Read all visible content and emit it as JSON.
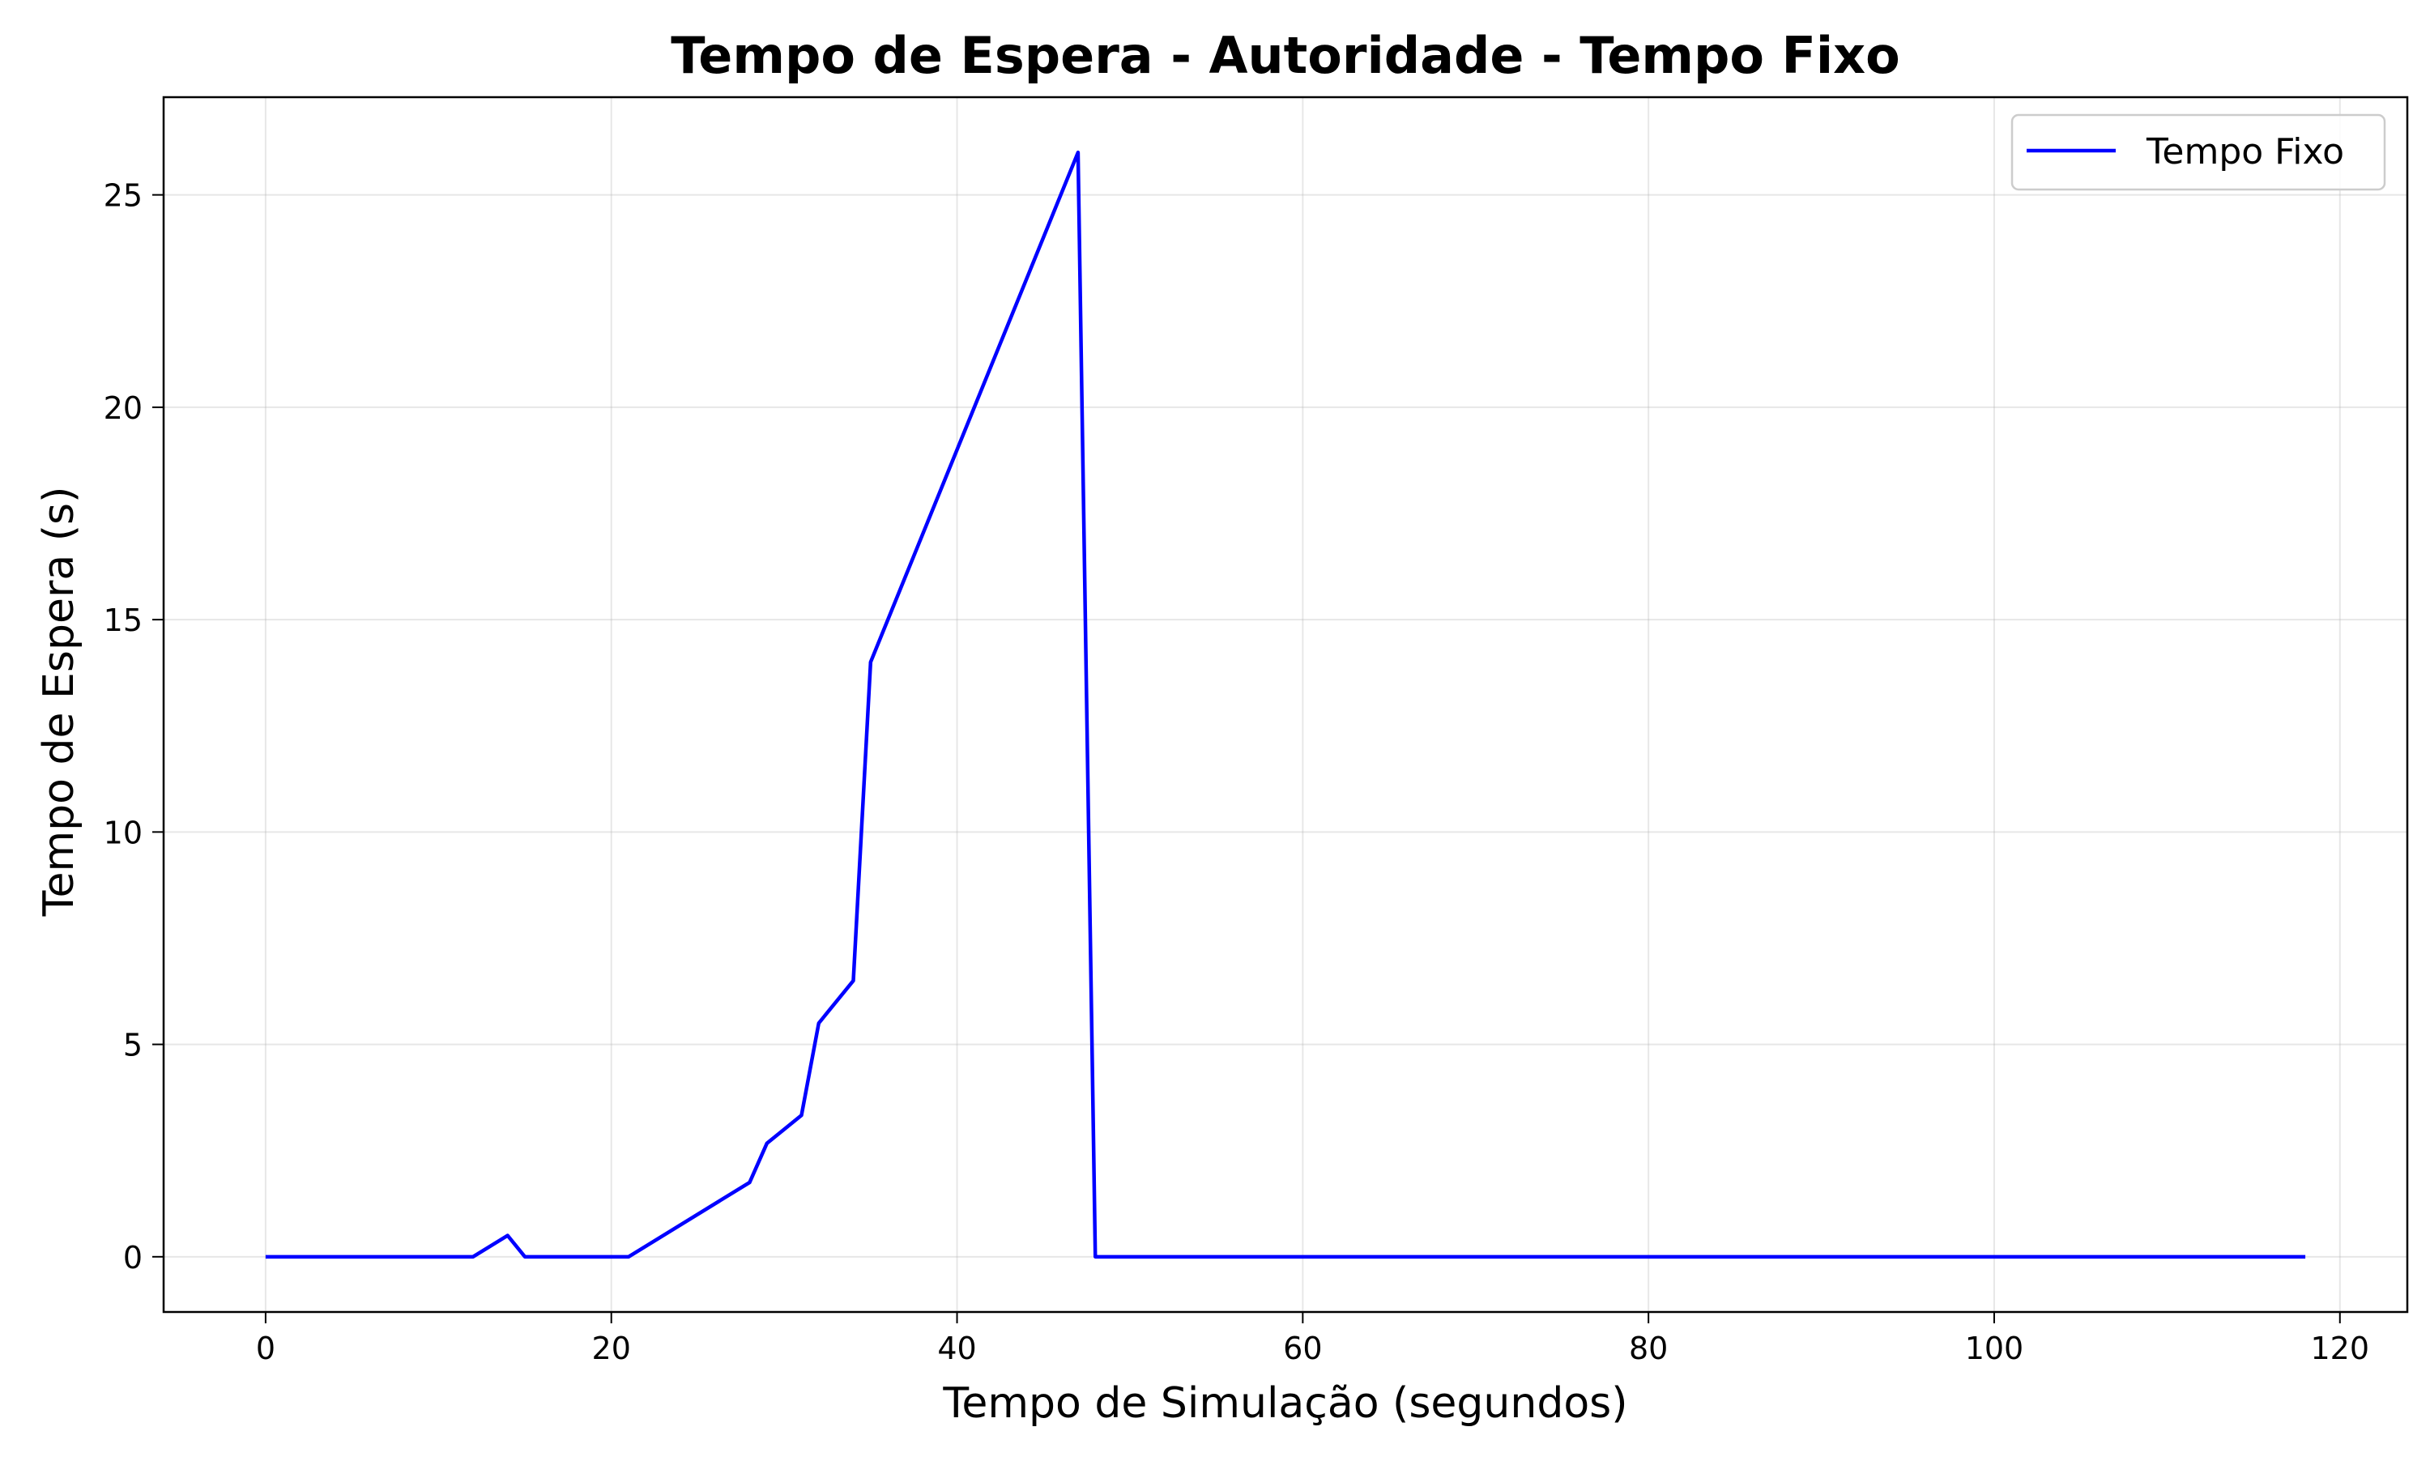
{
  "chart_data": {
    "type": "line",
    "title": "Tempo de Espera - Autoridade - Tempo Fixo",
    "xlabel": "Tempo de Simulação (segundos)",
    "ylabel": "Tempo de Espera (s)",
    "xlim": [
      -5.9,
      123.9
    ],
    "ylim": [
      -1.3,
      27.3
    ],
    "xticks": [
      0,
      20,
      40,
      60,
      80,
      100,
      120
    ],
    "yticks": [
      0,
      5,
      10,
      15,
      20,
      25
    ],
    "grid": true,
    "legend_position": "top-right",
    "series": [
      {
        "name": "Tempo Fixo",
        "color": "#0000ff",
        "x": [
          0,
          12,
          14,
          15,
          21,
          28,
          29,
          31,
          32,
          34,
          35,
          47,
          48,
          118
        ],
        "y": [
          0,
          0,
          0.5,
          0,
          0,
          1.75,
          2.67,
          3.33,
          5.5,
          6.5,
          14,
          26,
          0,
          0
        ]
      }
    ]
  }
}
